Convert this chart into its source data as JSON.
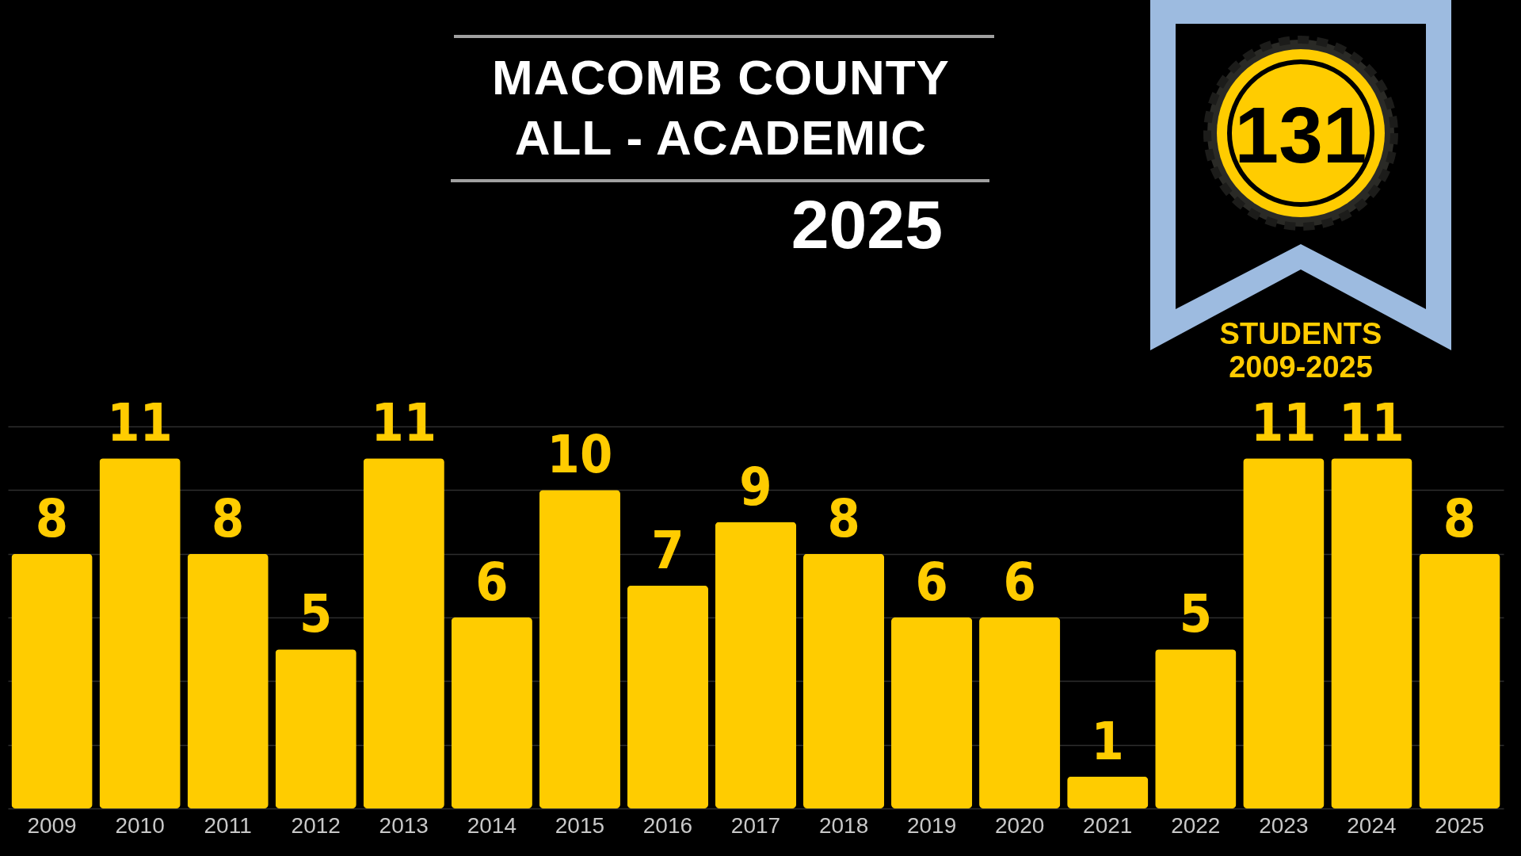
{
  "chart_data": {
    "type": "bar",
    "title": "MACOMB COUNTY ALL - ACADEMIC",
    "subtitle": "2025",
    "categories": [
      "2009",
      "2010",
      "2011",
      "2012",
      "2013",
      "2014",
      "2015",
      "2016",
      "2017",
      "2018",
      "2019",
      "2020",
      "2021",
      "2022",
      "2023",
      "2024",
      "2025"
    ],
    "values": [
      8,
      11,
      8,
      5,
      11,
      6,
      10,
      7,
      9,
      8,
      6,
      6,
      1,
      5,
      11,
      11,
      8
    ],
    "color": "#ffcc00",
    "data_labels": true,
    "ylim": [
      0,
      12
    ],
    "yticks": [
      {
        "value": 0,
        "label": null
      },
      {
        "value": 2,
        "label": null
      },
      {
        "value": 4,
        "label": null
      },
      {
        "value": 6,
        "label": null
      },
      {
        "value": 8,
        "label": null
      },
      {
        "value": 10,
        "label": null
      },
      {
        "value": 12,
        "label": null
      }
    ],
    "grid": "y",
    "tick_labels": "x",
    "annotations": [
      "131",
      "STUDENTS",
      "2009-2025"
    ]
  }
}
